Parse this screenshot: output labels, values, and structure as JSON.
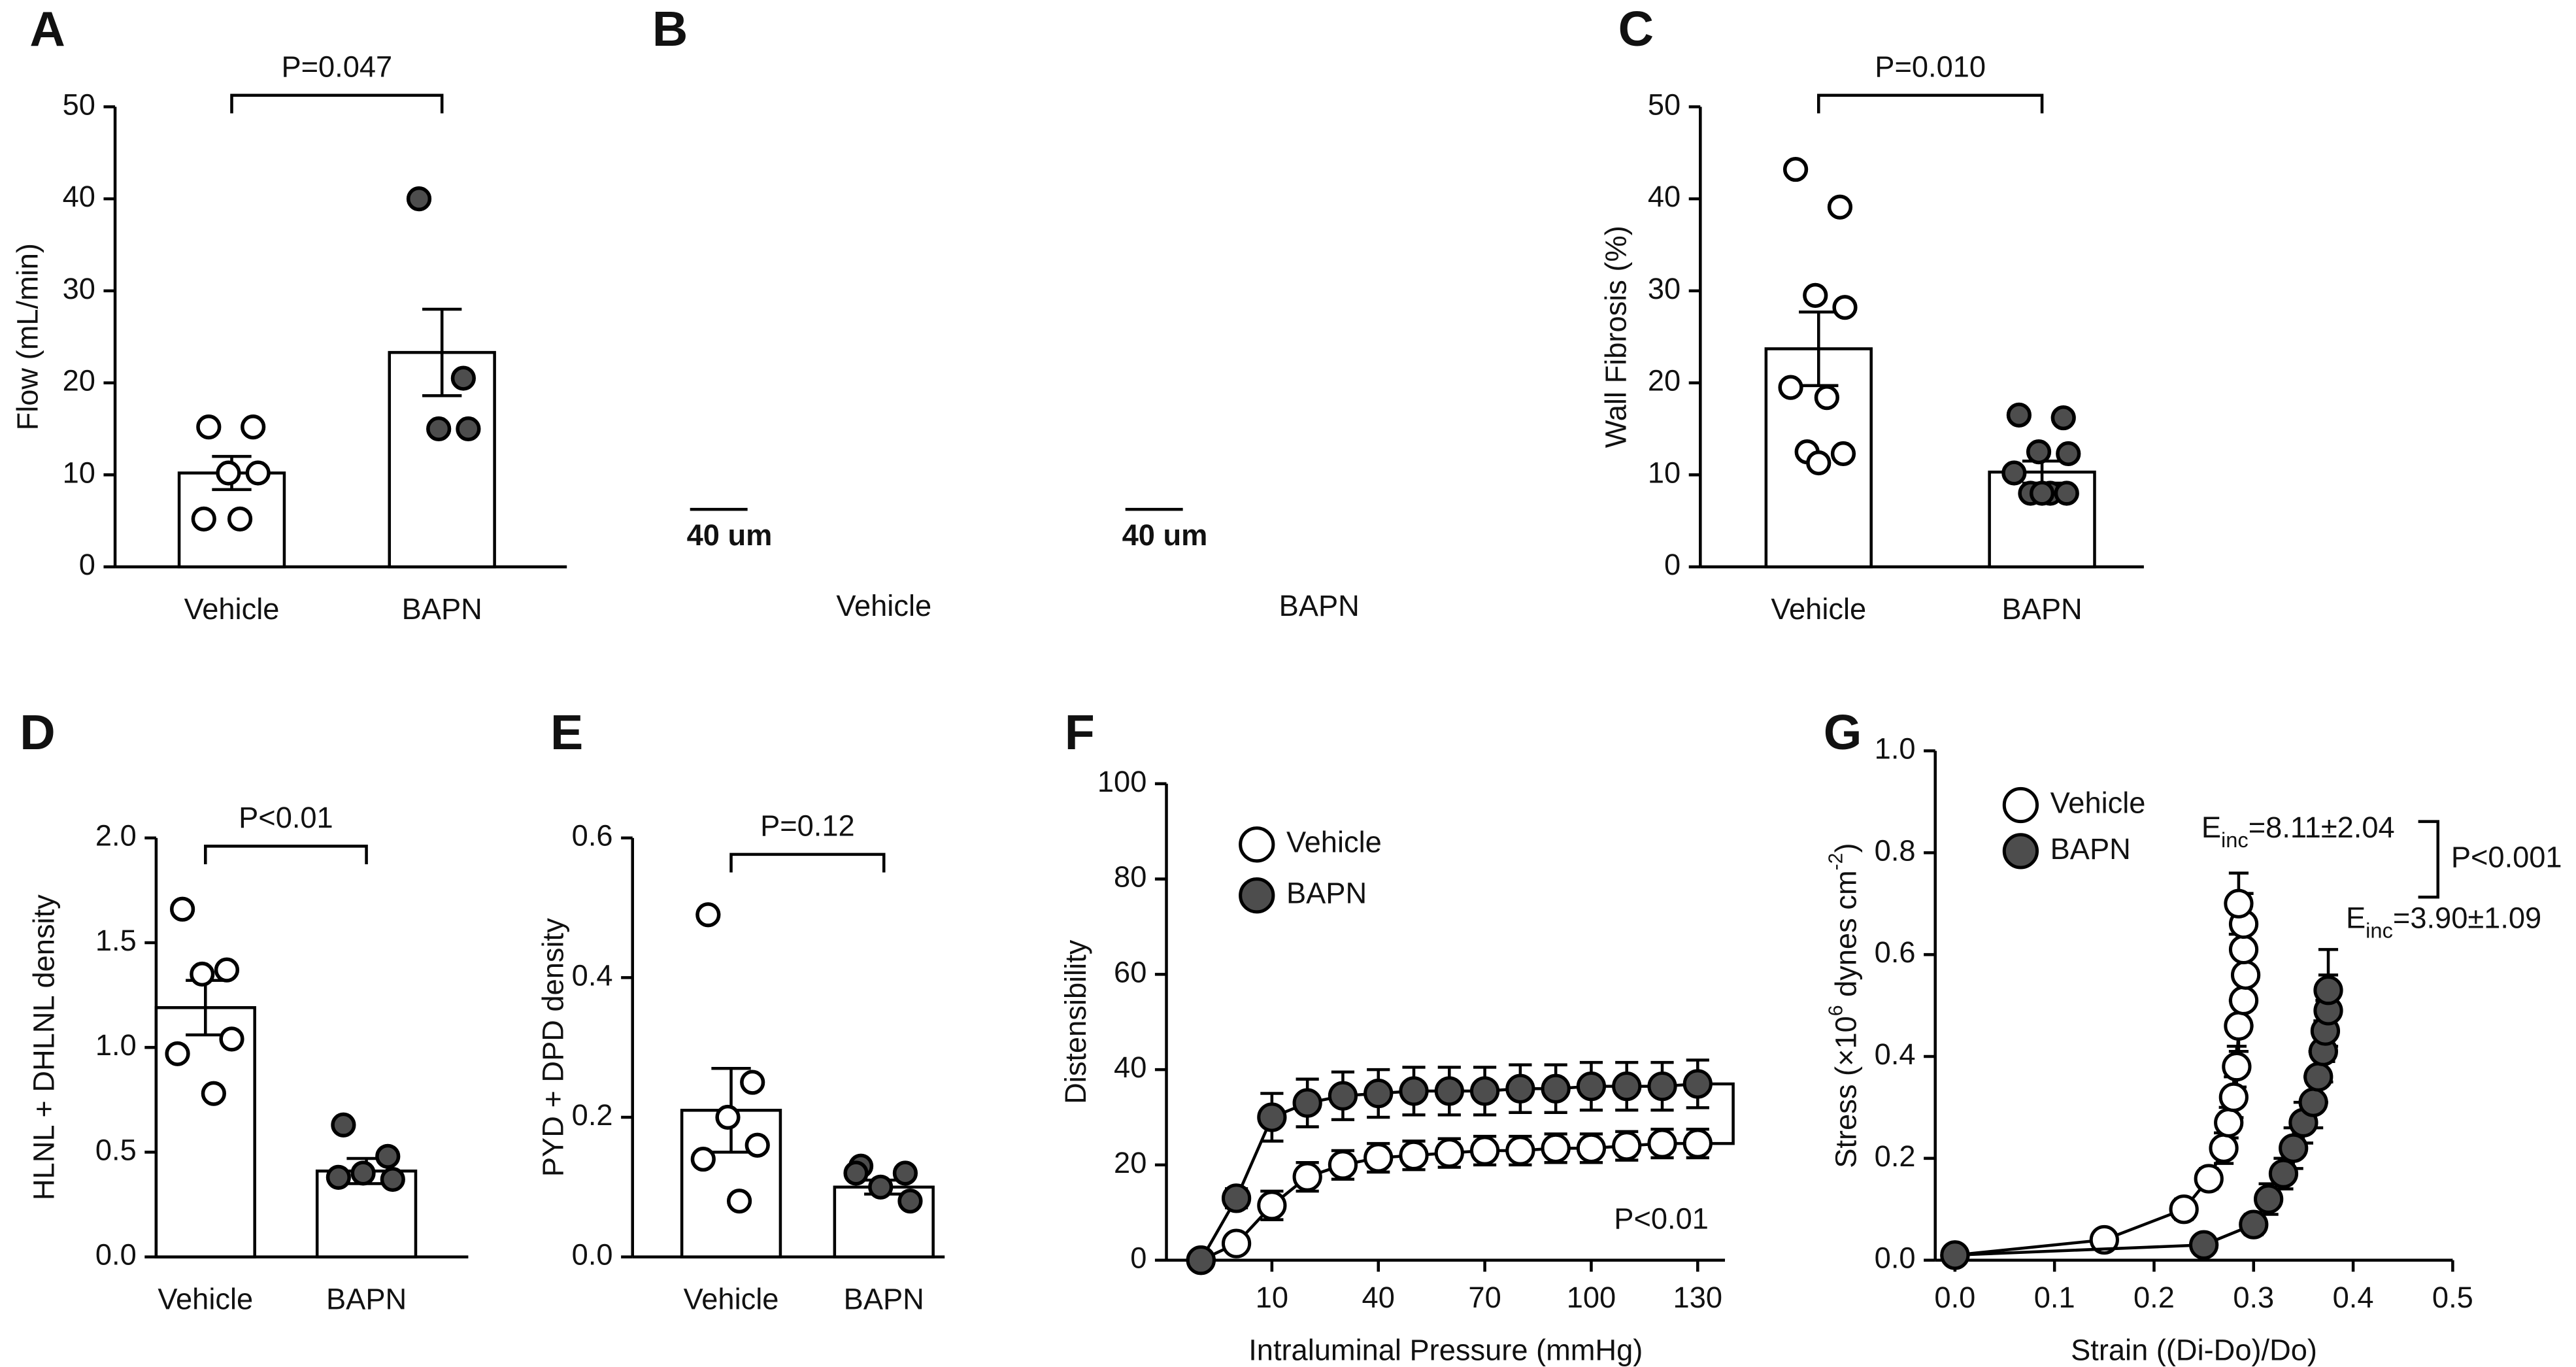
{
  "chart_data": [
    {
      "type": "bar",
      "panel": "A",
      "ylabel": "Flow (mL/min)",
      "categories": [
        "Vehicle",
        "BAPN"
      ],
      "values": [
        10.2,
        23.3
      ],
      "errors": [
        1.8,
        4.7
      ],
      "points": [
        [
          15.2,
          15.2,
          10.2,
          10.2,
          5.2,
          5.2
        ],
        [
          40,
          20.5,
          15,
          15
        ]
      ],
      "point_colors": [
        "#ffffff",
        "#4d4d4d"
      ],
      "bar_color": "#ffffff",
      "ylim": [
        0,
        50
      ],
      "yticks": [
        0,
        10,
        20,
        30,
        40,
        50
      ],
      "annotation": "P=0.047"
    },
    {
      "type": "micrograph",
      "panel": "B",
      "categories": [
        "Vehicle",
        "BAPN"
      ],
      "scale_bar": "40 um"
    },
    {
      "type": "bar",
      "panel": "C",
      "ylabel": "Wall Fibrosis (%)",
      "categories": [
        "Vehicle",
        "BAPN"
      ],
      "values": [
        23.7,
        10.3
      ],
      "errors": [
        4,
        1.2
      ],
      "points": [
        [
          43.2,
          39.1,
          29.5,
          28.2,
          19.5,
          18.4,
          12.5,
          12.3,
          11.3
        ],
        [
          16.5,
          16.2,
          12.5,
          12.3,
          10.2,
          8,
          8,
          8,
          8
        ]
      ],
      "point_colors": [
        "#ffffff",
        "#4d4d4d"
      ],
      "bar_color": "#ffffff",
      "ylim": [
        0,
        50
      ],
      "yticks": [
        0,
        10,
        20,
        30,
        40,
        50
      ],
      "annotation": "P=0.010"
    },
    {
      "type": "bar",
      "panel": "D",
      "ylabel": "HLNL + DHLNL density",
      "categories": [
        "Vehicle",
        "BAPN"
      ],
      "values": [
        1.19,
        0.41
      ],
      "errors": [
        0.13,
        0.06
      ],
      "points": [
        [
          1.66,
          1.37,
          1.35,
          1.04,
          0.97,
          0.78
        ],
        [
          0.63,
          0.48,
          0.4,
          0.37,
          0.38
        ]
      ],
      "point_colors": [
        "#ffffff",
        "#4d4d4d"
      ],
      "bar_color": "#ffffff",
      "ylim": [
        0,
        2
      ],
      "yticks": [
        {
          "value": 0,
          "label": "0.0"
        },
        0.5,
        {
          "value": 1,
          "label": "1.0"
        },
        1.5,
        {
          "value": 2,
          "label": "2.0"
        }
      ],
      "annotation": "P<0.01"
    },
    {
      "type": "bar",
      "panel": "E",
      "ylabel": "PYD + DPD density",
      "categories": [
        "Vehicle",
        "BAPN"
      ],
      "values": [
        0.21,
        0.1
      ],
      "errors": [
        0.06,
        0.01
      ],
      "points": [
        [
          0.49,
          0.25,
          0.2,
          0.16,
          0.14,
          0.08
        ],
        [
          0.13,
          0.12,
          0.1,
          0.08,
          0.12
        ]
      ],
      "point_colors": [
        "#ffffff",
        "#4d4d4d"
      ],
      "bar_color": "#ffffff",
      "ylim": [
        0,
        0.6
      ],
      "yticks": [
        {
          "value": 0,
          "label": "0.0"
        },
        0.2,
        0.4,
        0.6
      ],
      "annotation": "P=0.12"
    },
    {
      "type": "line",
      "panel": "F",
      "xlabel": "Intraluminal Pressure (mmHg)",
      "ylabel": "Distensibility",
      "categories": [
        null,
        null,
        10,
        null,
        null,
        40,
        null,
        null,
        70,
        null,
        null,
        100,
        null,
        null,
        130
      ],
      "series": [
        {
          "name": "Vehicle",
          "color": "#ffffff",
          "values": [
            0,
            3.5,
            11.5,
            17.5,
            20,
            21.5,
            22,
            22.5,
            23,
            23,
            23.5,
            23.5,
            24,
            24.5,
            24.5
          ],
          "errors": [
            0.5,
            1.5,
            3,
            3,
            3,
            3,
            3,
            3,
            3,
            3,
            3,
            3,
            3,
            3,
            3
          ]
        },
        {
          "name": "BAPN",
          "color": "#4d4d4d",
          "values": [
            0,
            13,
            30,
            33,
            34.5,
            35,
            35.5,
            35.5,
            35.5,
            36,
            36,
            36.5,
            36.5,
            36.5,
            37
          ],
          "errors": [
            0.5,
            2,
            5,
            5,
            5,
            5,
            5,
            5,
            5,
            5,
            5,
            5,
            5,
            5,
            5
          ]
        }
      ],
      "ylim": [
        0,
        100
      ],
      "yticks": [
        0,
        20,
        40,
        60,
        80,
        100
      ],
      "annotation": "P<0.01"
    },
    {
      "type": "scatter",
      "panel": "G",
      "xlabel": "Strain ((Di-Do)/Do)",
      "ylabel": [
        "Stress (×10",
        "6",
        " dynes cm",
        "-2",
        ")"
      ],
      "xlim": [
        0,
        0.5
      ],
      "xticks": [
        {
          "value": 0,
          "label": "0.0"
        },
        0.1,
        0.2,
        0.3,
        0.4,
        0.5
      ],
      "ylim": [
        0,
        1
      ],
      "yticks": [
        {
          "value": 0,
          "label": "0.0"
        },
        0.2,
        0.4,
        0.6,
        0.8,
        {
          "value": 1,
          "label": "1.0"
        }
      ],
      "series": [
        {
          "name": "Vehicle",
          "color": "#ffffff",
          "x": [
            0,
            0.15,
            0.23,
            0.255,
            0.27,
            0.275,
            0.28,
            0.283,
            0.285,
            0.29,
            0.292,
            0.29,
            0.29,
            0.285
          ],
          "y": [
            0.01,
            0.04,
            0.1,
            0.16,
            0.22,
            0.27,
            0.32,
            0.38,
            0.46,
            0.51,
            0.56,
            0.61,
            0.66,
            0.7
          ],
          "errors": [
            0.01,
            0.01,
            0.02,
            0.02,
            0.03,
            0.03,
            0.04,
            0.04,
            0.05,
            0.05,
            0.05,
            0.06,
            0.06,
            0.06
          ]
        },
        {
          "name": "BAPN",
          "color": "#4d4d4d",
          "x": [
            0,
            0.25,
            0.3,
            0.315,
            0.33,
            0.34,
            0.35,
            0.36,
            0.365,
            0.37,
            0.372,
            0.375,
            0.375
          ],
          "y": [
            0.01,
            0.03,
            0.07,
            0.12,
            0.17,
            0.22,
            0.27,
            0.31,
            0.36,
            0.41,
            0.45,
            0.49,
            0.53
          ],
          "errors": [
            0.01,
            0.01,
            0.02,
            0.03,
            0.03,
            0.04,
            0.04,
            0.05,
            0.05,
            0.06,
            0.06,
            0.07,
            0.08
          ]
        }
      ],
      "annotations": [
        [
          "E",
          "inc",
          "=8.11±2.04"
        ],
        [
          "E",
          "inc",
          "=3.90±1.09"
        ]
      ],
      "p_value": "P<0.001"
    }
  ]
}
